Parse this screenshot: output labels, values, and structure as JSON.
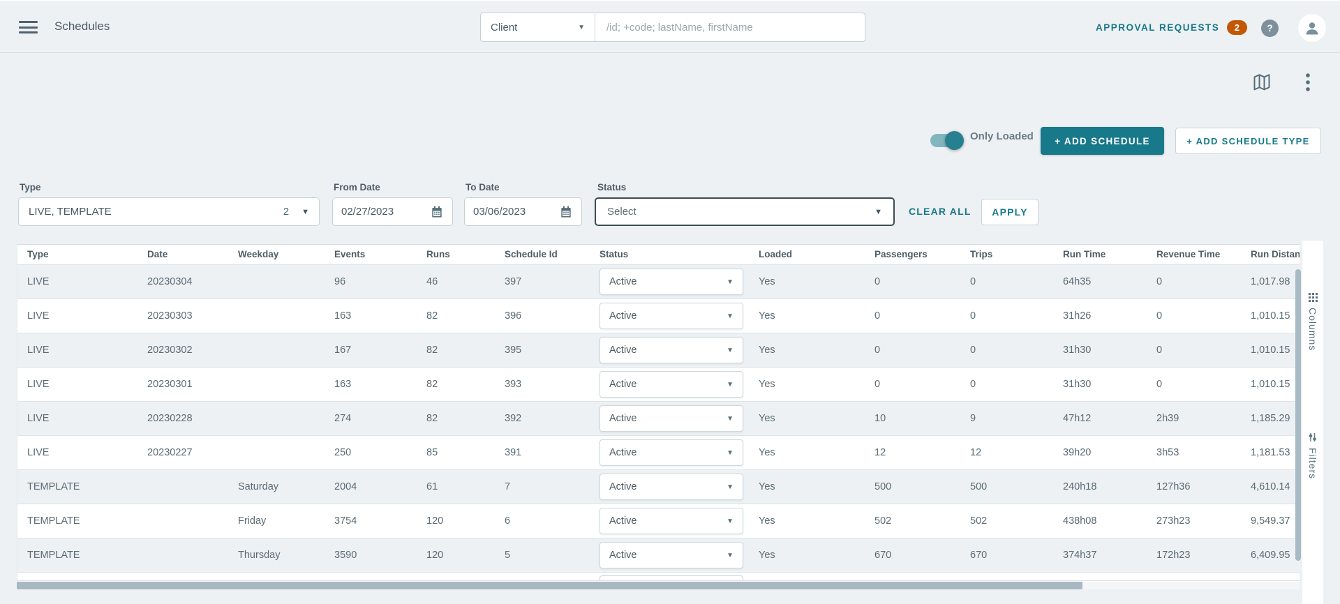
{
  "app": {
    "title": "Schedules",
    "search": {
      "scope_value": "Client",
      "placeholder": "/id; +code; lastName, firstName"
    },
    "approval": {
      "label": "APPROVAL REQUESTS",
      "count": "2",
      "help": "?"
    }
  },
  "toolbar": {
    "only_loaded_label": "Only Loaded",
    "only_loaded_on": true,
    "add_schedule_label": "+ ADD SCHEDULE",
    "add_schedule_type_label": "+ ADD SCHEDULE TYPE"
  },
  "filters": {
    "type": {
      "label": "Type",
      "value": "LIVE, TEMPLATE",
      "count": "2"
    },
    "from_date": {
      "label": "From Date",
      "value": "02/27/2023"
    },
    "to_date": {
      "label": "To Date",
      "value": "03/06/2023"
    },
    "status": {
      "label": "Status",
      "placeholder": "Select"
    },
    "clear_all_label": "CLEAR ALL",
    "apply_label": "APPLY"
  },
  "table": {
    "columns": [
      "Type",
      "Date",
      "Weekday",
      "Events",
      "Runs",
      "Schedule Id",
      "Status",
      "Loaded",
      "Passengers",
      "Trips",
      "Run Time",
      "Revenue Time",
      "Run Distance"
    ],
    "row_keys": [
      "type",
      "date",
      "weekday",
      "events",
      "runs",
      "schedule_id",
      "status",
      "loaded",
      "passengers",
      "trips",
      "run_time",
      "revenue_time",
      "run_distance"
    ],
    "rows": [
      {
        "type": "LIVE",
        "date": "20230304",
        "weekday": "",
        "events": "96",
        "runs": "46",
        "schedule_id": "397",
        "status": "Active",
        "loaded": "Yes",
        "passengers": "0",
        "trips": "0",
        "run_time": "64h35",
        "revenue_time": "0",
        "run_distance": "1,017.98"
      },
      {
        "type": "LIVE",
        "date": "20230303",
        "weekday": "",
        "events": "163",
        "runs": "82",
        "schedule_id": "396",
        "status": "Active",
        "loaded": "Yes",
        "passengers": "0",
        "trips": "0",
        "run_time": "31h26",
        "revenue_time": "0",
        "run_distance": "1,010.15"
      },
      {
        "type": "LIVE",
        "date": "20230302",
        "weekday": "",
        "events": "167",
        "runs": "82",
        "schedule_id": "395",
        "status": "Active",
        "loaded": "Yes",
        "passengers": "0",
        "trips": "0",
        "run_time": "31h30",
        "revenue_time": "0",
        "run_distance": "1,010.15"
      },
      {
        "type": "LIVE",
        "date": "20230301",
        "weekday": "",
        "events": "163",
        "runs": "82",
        "schedule_id": "393",
        "status": "Active",
        "loaded": "Yes",
        "passengers": "0",
        "trips": "0",
        "run_time": "31h30",
        "revenue_time": "0",
        "run_distance": "1,010.15"
      },
      {
        "type": "LIVE",
        "date": "20230228",
        "weekday": "",
        "events": "274",
        "runs": "82",
        "schedule_id": "392",
        "status": "Active",
        "loaded": "Yes",
        "passengers": "10",
        "trips": "9",
        "run_time": "47h12",
        "revenue_time": "2h39",
        "run_distance": "1,185.29"
      },
      {
        "type": "LIVE",
        "date": "20230227",
        "weekday": "",
        "events": "250",
        "runs": "85",
        "schedule_id": "391",
        "status": "Active",
        "loaded": "Yes",
        "passengers": "12",
        "trips": "12",
        "run_time": "39h20",
        "revenue_time": "3h53",
        "run_distance": "1,181.53"
      },
      {
        "type": "TEMPLATE",
        "date": "",
        "weekday": "Saturday",
        "events": "2004",
        "runs": "61",
        "schedule_id": "7",
        "status": "Active",
        "loaded": "Yes",
        "passengers": "500",
        "trips": "500",
        "run_time": "240h18",
        "revenue_time": "127h36",
        "run_distance": "4,610.14"
      },
      {
        "type": "TEMPLATE",
        "date": "",
        "weekday": "Friday",
        "events": "3754",
        "runs": "120",
        "schedule_id": "6",
        "status": "Active",
        "loaded": "Yes",
        "passengers": "502",
        "trips": "502",
        "run_time": "438h08",
        "revenue_time": "273h23",
        "run_distance": "9,549.37"
      },
      {
        "type": "TEMPLATE",
        "date": "",
        "weekday": "Thursday",
        "events": "3590",
        "runs": "120",
        "schedule_id": "5",
        "status": "Active",
        "loaded": "Yes",
        "passengers": "670",
        "trips": "670",
        "run_time": "374h37",
        "revenue_time": "172h23",
        "run_distance": "6,409.95"
      }
    ]
  },
  "side_panel": {
    "columns_label": "Columns",
    "filters_label": "Filters",
    "columns_icon": "grid-icon",
    "filters_icon": "sliders-icon"
  },
  "colors": {
    "accent_teal": "#17798a",
    "badge_orange": "#c25705",
    "row_alt": "#edf1f4",
    "icon_slate": "#546e7a",
    "scrollbar": "#a8bac4"
  }
}
